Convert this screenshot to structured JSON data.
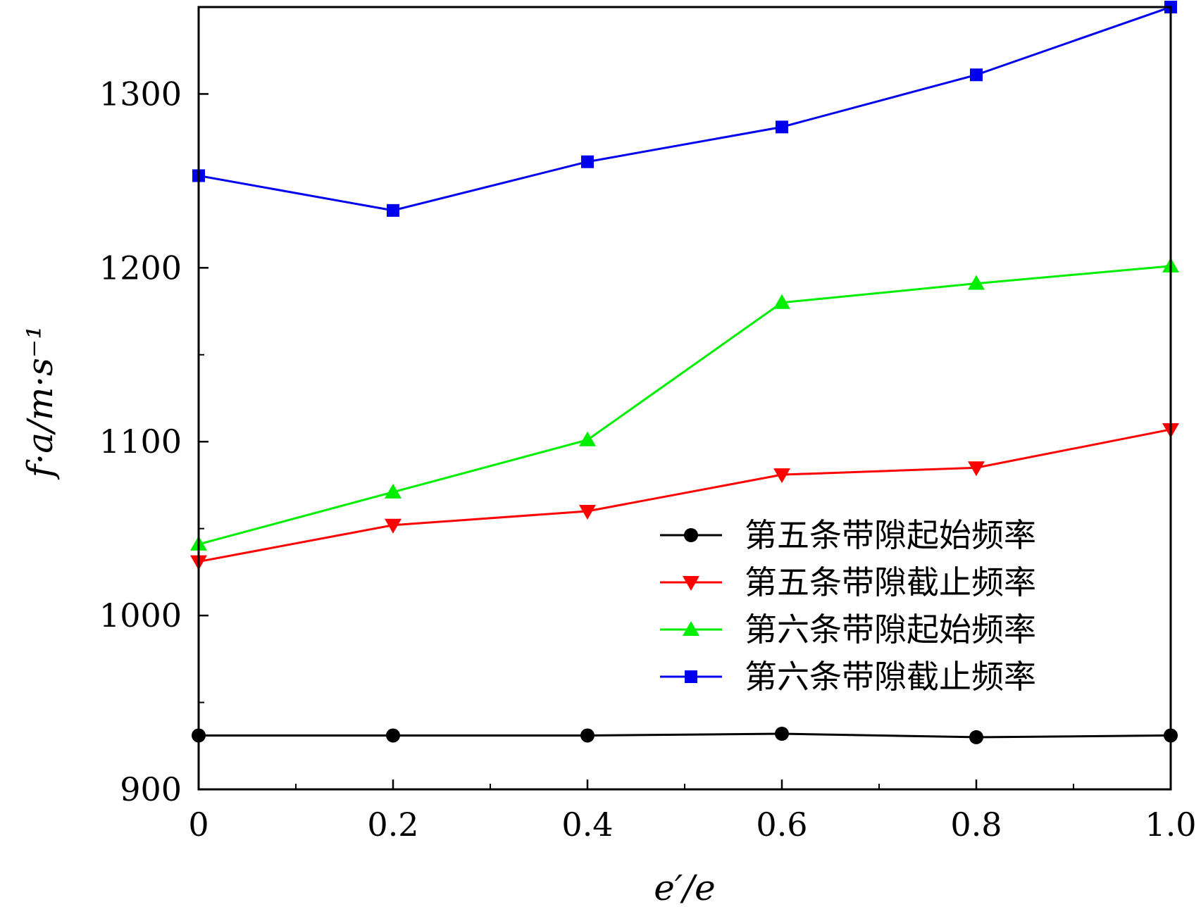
{
  "chart_data": {
    "type": "line",
    "xlabel": "e′/e",
    "ylabel": "f·a/m·s⁻¹",
    "xlim": [
      0,
      1.0
    ],
    "ylim": [
      900,
      1350
    ],
    "xticks": [
      0,
      0.2,
      0.4,
      0.6,
      0.8,
      1.0
    ],
    "xtick_labels": [
      "0",
      "0.2",
      "0.4",
      "0.6",
      "0.8",
      "1.0"
    ],
    "yticks": [
      900,
      1000,
      1100,
      1200,
      1300
    ],
    "ytick_labels": [
      "900",
      "1000",
      "1100",
      "1200",
      "1300"
    ],
    "grid": false,
    "legend_position": "lower-right",
    "x": [
      0,
      0.2,
      0.4,
      0.6,
      0.8,
      1.0
    ],
    "series": [
      {
        "name": "第五条带隙起始频率",
        "color": "#000000",
        "marker": "circle",
        "values": [
          931,
          931,
          931,
          932,
          930,
          931
        ]
      },
      {
        "name": "第五条带隙截止频率",
        "color": "#ff0000",
        "marker": "triangle-down",
        "values": [
          1031,
          1052,
          1060,
          1081,
          1085,
          1107
        ]
      },
      {
        "name": "第六条带隙起始频率",
        "color": "#00ee00",
        "marker": "triangle-up",
        "values": [
          1041,
          1071,
          1101,
          1180,
          1191,
          1201
        ]
      },
      {
        "name": "第六条带隙截止频率",
        "color": "#0000ee",
        "marker": "square",
        "values": [
          1253,
          1233,
          1261,
          1281,
          1311,
          1350
        ]
      }
    ]
  }
}
